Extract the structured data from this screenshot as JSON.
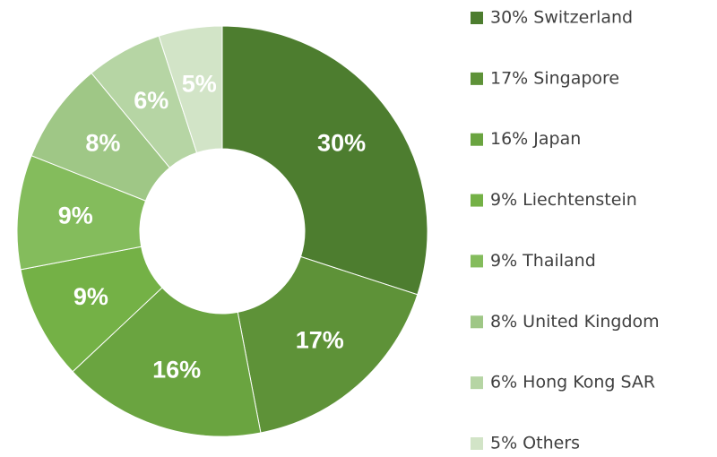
{
  "chart_data": {
    "type": "donut",
    "categories": [
      "30% Switzerland",
      "17% Singapore",
      "16% Japan",
      "9% Liechtenstein",
      "9% Thailand",
      "8% United Kingdom",
      "6% Hong Kong SAR",
      "5% Others"
    ],
    "values": [
      30,
      17,
      16,
      9,
      9,
      8,
      6,
      5
    ],
    "value_labels": [
      "30%",
      "17%",
      "16%",
      "9%",
      "9%",
      "8%",
      "6%",
      "5%"
    ],
    "colors": [
      "#4d7d2f",
      "#5e9238",
      "#6aa440",
      "#74b146",
      "#84bc5c",
      "#9fc786",
      "#b6d5a4",
      "#d2e4c7"
    ],
    "legend": "right"
  }
}
